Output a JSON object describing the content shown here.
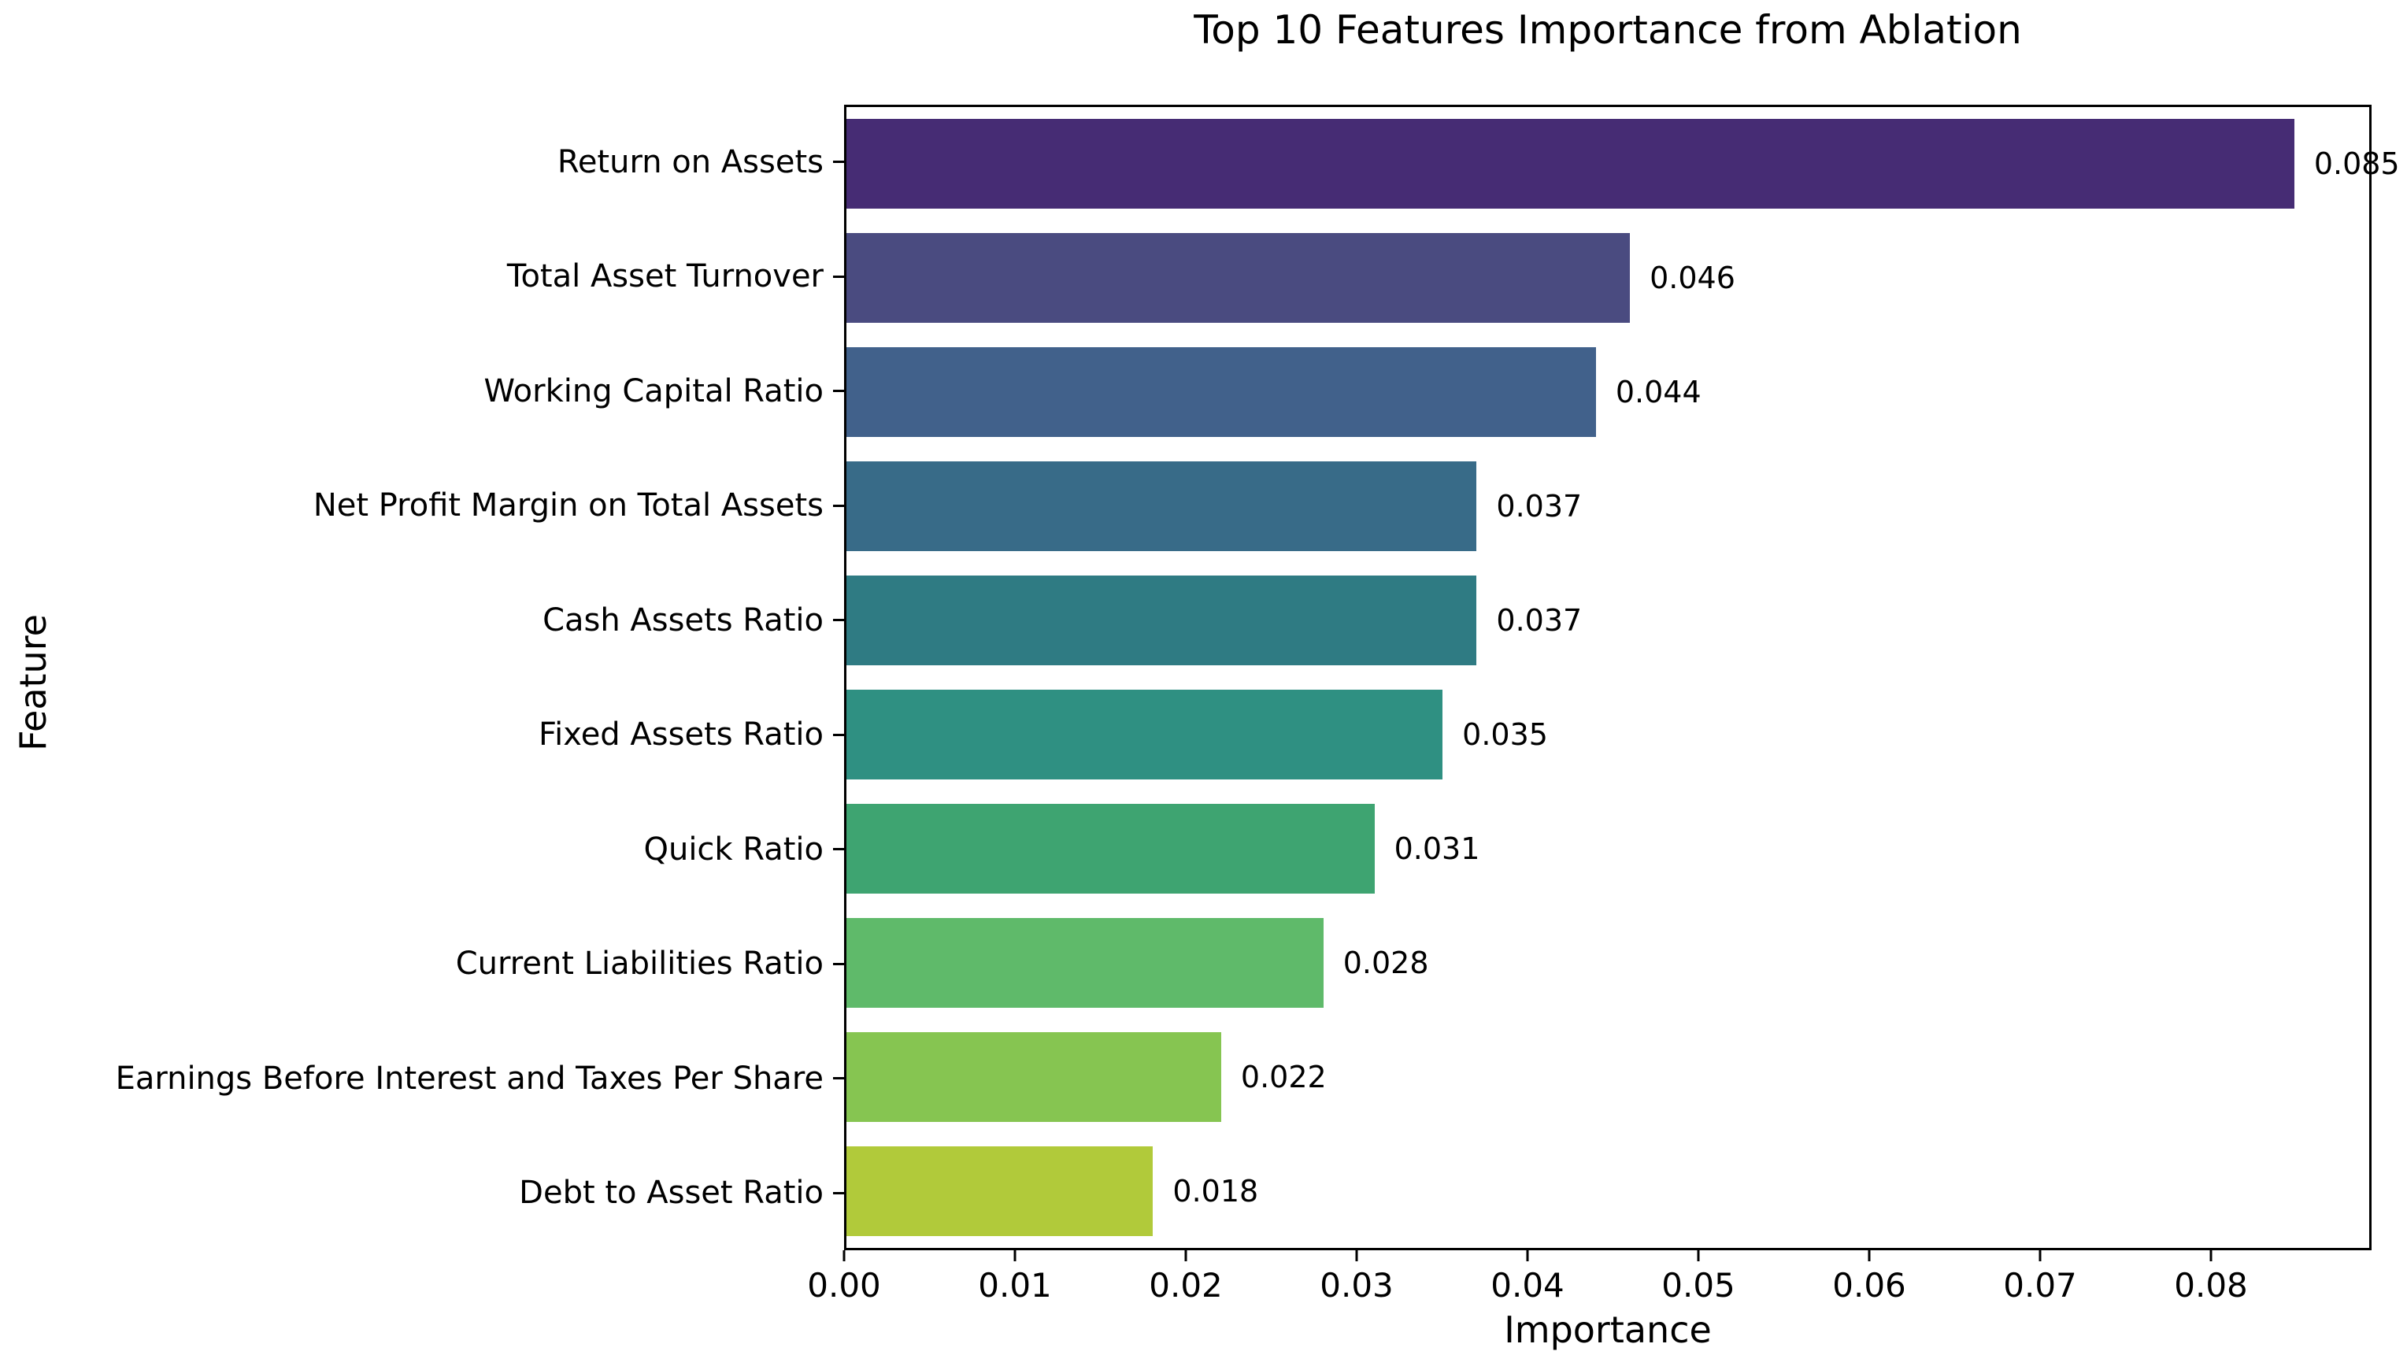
{
  "chart_data": {
    "type": "bar",
    "orientation": "horizontal",
    "title": "Top 10 Features Importance from Ablation",
    "xlabel": "Importance",
    "ylabel": "Feature",
    "categories": [
      "Return on Assets",
      "Total Asset Turnover",
      "Working Capital Ratio",
      "Net Profit Margin on Total Assets",
      "Cash Assets Ratio",
      "Fixed Assets Ratio",
      "Quick Ratio",
      "Current Liabilities Ratio",
      "Earnings Before Interest and Taxes Per Share",
      "Debt to Asset Ratio"
    ],
    "values": [
      0.085,
      0.046,
      0.044,
      0.037,
      0.037,
      0.035,
      0.031,
      0.028,
      0.022,
      0.018
    ],
    "value_labels": [
      "0.085",
      "0.046",
      "0.044",
      "0.037",
      "0.037",
      "0.035",
      "0.031",
      "0.028",
      "0.022",
      "0.018"
    ],
    "bar_colors": [
      "#462c74",
      "#4a4b80",
      "#41618b",
      "#386b88",
      "#2f7b83",
      "#2f9082",
      "#3ea471",
      "#5fba6a",
      "#86c551",
      "#b1ca3a"
    ],
    "x_ticks": {
      "values": [
        0.0,
        0.01,
        0.02,
        0.03,
        0.04,
        0.05,
        0.06,
        0.07,
        0.08
      ],
      "labels": [
        "0.00",
        "0.01",
        "0.02",
        "0.03",
        "0.04",
        "0.05",
        "0.06",
        "0.07",
        "0.08"
      ]
    },
    "xlim": [
      0,
      0.0894
    ],
    "grid": false,
    "legend": null
  }
}
